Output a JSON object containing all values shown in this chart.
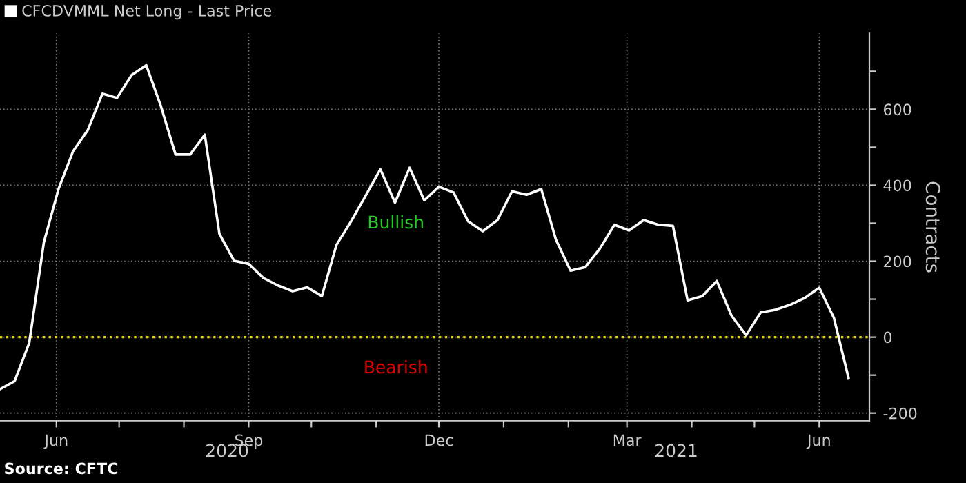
{
  "chart_data": {
    "type": "line",
    "series": [
      {
        "name": "CFCDVMML Net Long - Last Price",
        "color": "#ffffff",
        "values": [
          -137,
          -116,
          -15,
          250,
          390,
          490,
          545,
          641,
          630,
          690,
          716,
          608,
          481,
          481,
          533,
          272,
          201,
          193,
          156,
          136,
          121,
          131,
          108,
          243,
          305,
          373,
          442,
          354,
          446,
          360,
          396,
          381,
          305,
          279,
          308,
          384,
          375,
          390,
          257,
          175,
          184,
          233,
          296,
          281,
          308,
          296,
          293,
          97,
          108,
          148,
          57,
          5,
          65,
          72,
          85,
          103,
          130,
          51,
          -107
        ]
      }
    ],
    "x": [
      "2020-05-05",
      "2020-05-12",
      "2020-05-19",
      "2020-05-26",
      "2020-06-02",
      "2020-06-09",
      "2020-06-16",
      "2020-06-23",
      "2020-06-30",
      "2020-07-07",
      "2020-07-14",
      "2020-07-21",
      "2020-07-28",
      "2020-08-04",
      "2020-08-11",
      "2020-08-18",
      "2020-08-25",
      "2020-09-01",
      "2020-09-08",
      "2020-09-15",
      "2020-09-22",
      "2020-09-29",
      "2020-10-06",
      "2020-10-13",
      "2020-10-20",
      "2020-10-27",
      "2020-11-03",
      "2020-11-10",
      "2020-11-17",
      "2020-11-24",
      "2020-12-01",
      "2020-12-08",
      "2020-12-15",
      "2020-12-22",
      "2020-12-29",
      "2021-01-05",
      "2021-01-12",
      "2021-01-19",
      "2021-01-26",
      "2021-02-02",
      "2021-02-09",
      "2021-02-16",
      "2021-02-23",
      "2021-03-02",
      "2021-03-09",
      "2021-03-16",
      "2021-03-23",
      "2021-03-30",
      "2021-04-06",
      "2021-04-13",
      "2021-04-20",
      "2021-04-27",
      "2021-05-04",
      "2021-05-11",
      "2021-05-18",
      "2021-05-25",
      "2021-06-01",
      "2021-06-08",
      "2021-06-15"
    ],
    "xlim": [
      "2020-05-05",
      "2021-06-25"
    ],
    "xticks": [
      {
        "value": "2020-06-01",
        "label": "Jun"
      },
      {
        "value": "2020-07-01",
        "label": null
      },
      {
        "value": "2020-08-01",
        "label": null
      },
      {
        "value": "2020-09-01",
        "label": "Sep"
      },
      {
        "value": "2020-10-01",
        "label": null
      },
      {
        "value": "2020-11-01",
        "label": null
      },
      {
        "value": "2020-12-01",
        "label": "Dec"
      },
      {
        "value": "2021-01-01",
        "label": null
      },
      {
        "value": "2021-02-01",
        "label": null
      },
      {
        "value": "2021-03-01",
        "label": "Mar"
      },
      {
        "value": "2021-04-01",
        "label": null
      },
      {
        "value": "2021-05-01",
        "label": null
      },
      {
        "value": "2021-06-01",
        "label": "Jun"
      }
    ],
    "ylim": [
      -220,
      800
    ],
    "yticks": [
      -200,
      {
        "value": -100,
        "label": null
      },
      0,
      {
        "value": 100,
        "label": null
      },
      200,
      {
        "value": 300,
        "label": null
      },
      400,
      {
        "value": 500,
        "label": null
      },
      600,
      {
        "value": 700,
        "label": null
      }
    ],
    "ylabel": "Contracts",
    "ref_lines": [
      {
        "axis": "y",
        "value": 0,
        "color": "#e6d800",
        "line_style": "dotted"
      }
    ],
    "annotations": [
      "Bullish",
      "Bearish",
      "2020",
      "2021",
      "Source: CFTC"
    ],
    "grid": true,
    "legend": "top left",
    "marker": "none",
    "line_style": "solid"
  }
}
